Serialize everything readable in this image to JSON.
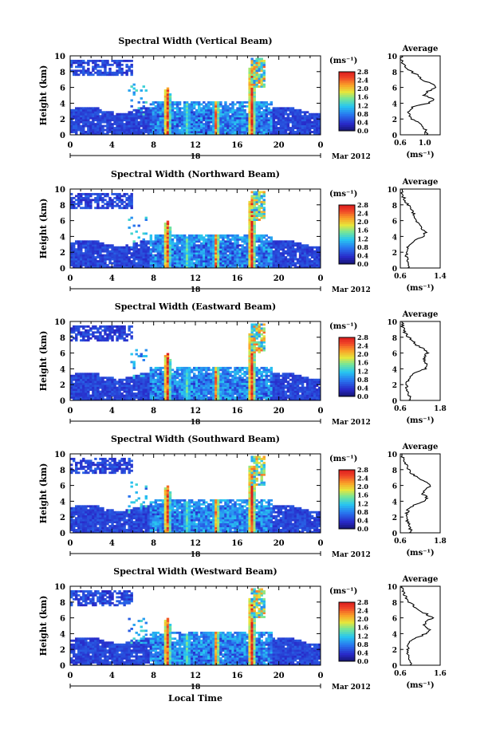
{
  "figure": {
    "xlabel": "Local Time"
  },
  "chart_data": [
    {
      "type": "heatmap",
      "title": "Spectral Width (Vertical Beam)",
      "ylabel": "Height (km)",
      "ylim": [
        0,
        10
      ],
      "yticks": [
        "0",
        "2",
        "4",
        "6",
        "8",
        "10"
      ],
      "xlim": [
        0,
        24
      ],
      "xticks": [
        "0",
        "4",
        "8",
        "12",
        "16",
        "20",
        "0"
      ],
      "date_tick": "18",
      "date_label": "Mar 2012",
      "colorbar": {
        "unit_label": "(ms⁻¹)",
        "ticks": [
          "0.0",
          "0.4",
          "0.8",
          "1.2",
          "1.6",
          "2.0",
          "2.4",
          "2.8"
        ],
        "range": [
          0,
          2.8
        ]
      },
      "average_profile": {
        "title": "Average",
        "xlabel": "(ms⁻¹)",
        "xlim": [
          0.6,
          1.25
        ],
        "xticks": [
          "0.6",
          "1.0"
        ],
        "height": [
          0,
          0.5,
          1,
          1.5,
          2,
          2.5,
          3,
          3.5,
          4,
          4.5,
          5,
          5.5,
          6,
          6.5,
          7,
          7.5,
          8,
          8.5,
          9,
          9.5,
          10
        ],
        "width": [
          1.05,
          1.02,
          0.97,
          0.93,
          0.8,
          0.75,
          0.74,
          0.8,
          1.05,
          1.15,
          0.98,
          1.05,
          1.2,
          1.1,
          0.95,
          0.9,
          0.78,
          0.7,
          0.65,
          0.62,
          0.62
        ]
      }
    },
    {
      "type": "heatmap",
      "title": "Spectral Width (Northward Beam)",
      "ylabel": "Height (km)",
      "ylim": [
        0,
        10
      ],
      "yticks": [
        "0",
        "2",
        "4",
        "6",
        "8",
        "10"
      ],
      "xlim": [
        0,
        24
      ],
      "xticks": [
        "0",
        "4",
        "8",
        "12",
        "16",
        "20",
        "0"
      ],
      "date_tick": "18",
      "date_label": "Mar 2012",
      "colorbar": {
        "unit_label": "(ms⁻¹)",
        "ticks": [
          "0.0",
          "0.4",
          "0.8",
          "1.2",
          "1.6",
          "2.0",
          "2.4",
          "2.8"
        ],
        "range": [
          0,
          2.8
        ]
      },
      "average_profile": {
        "title": "Average",
        "xlabel": "(ms⁻¹)",
        "xlim": [
          0.6,
          1.4
        ],
        "xticks": [
          "0.6",
          "1.4"
        ],
        "height": [
          0,
          0.5,
          1,
          1.5,
          2,
          2.5,
          3,
          3.5,
          4,
          4.5,
          5,
          5.5,
          6,
          6.5,
          7,
          7.5,
          8,
          8.5,
          9,
          9.5,
          10
        ],
        "width": [
          0.78,
          0.76,
          0.74,
          0.72,
          0.72,
          0.74,
          0.8,
          0.9,
          1.05,
          1.1,
          1.02,
          0.98,
          0.92,
          0.9,
          0.85,
          0.82,
          0.75,
          0.7,
          0.66,
          0.64,
          0.63
        ]
      }
    },
    {
      "type": "heatmap",
      "title": "Spectral Width (Eastward Beam)",
      "ylabel": "Height (km)",
      "ylim": [
        0,
        10
      ],
      "yticks": [
        "0",
        "2",
        "4",
        "6",
        "8",
        "10"
      ],
      "xlim": [
        0,
        24
      ],
      "xticks": [
        "0",
        "4",
        "8",
        "12",
        "16",
        "20",
        "0"
      ],
      "date_tick": "18",
      "date_label": "Mar 2012",
      "colorbar": {
        "unit_label": "(ms⁻¹)",
        "ticks": [
          "0.0",
          "0.4",
          "0.8",
          "1.2",
          "1.6",
          "2.0",
          "2.4",
          "2.8"
        ],
        "range": [
          0,
          2.8
        ]
      },
      "average_profile": {
        "title": "Average",
        "xlabel": "(ms⁻¹)",
        "xlim": [
          0.6,
          1.8
        ],
        "xticks": [
          "0.6",
          "1.8"
        ],
        "height": [
          0,
          0.5,
          1,
          1.5,
          2,
          2.5,
          3,
          3.5,
          4,
          4.5,
          5,
          5.5,
          6,
          6.5,
          7,
          7.5,
          8,
          8.5,
          9,
          9.5,
          10
        ],
        "width": [
          0.9,
          0.88,
          0.85,
          0.8,
          0.8,
          0.82,
          0.9,
          1.05,
          1.35,
          1.4,
          1.3,
          1.35,
          1.4,
          1.3,
          1.1,
          1.0,
          0.85,
          0.75,
          0.7,
          0.66,
          0.65
        ]
      }
    },
    {
      "type": "heatmap",
      "title": "Spectral Width (Southward Beam)",
      "ylabel": "Height (km)",
      "ylim": [
        0,
        10
      ],
      "yticks": [
        "0",
        "2",
        "4",
        "6",
        "8",
        "10"
      ],
      "xlim": [
        0,
        24
      ],
      "xticks": [
        "0",
        "4",
        "8",
        "12",
        "16",
        "20",
        "0"
      ],
      "date_tick": "18",
      "date_label": "Mar 2012",
      "colorbar": {
        "unit_label": "(ms⁻¹)",
        "ticks": [
          "0.0",
          "0.4",
          "0.8",
          "1.2",
          "1.6",
          "2.0",
          "2.4",
          "2.8"
        ],
        "range": [
          0,
          2.8
        ]
      },
      "average_profile": {
        "title": "Average",
        "xlabel": "(ms⁻¹)",
        "xlim": [
          0.6,
          1.8
        ],
        "xticks": [
          "0.6",
          "1.8"
        ],
        "height": [
          0,
          0.5,
          1,
          1.5,
          2,
          2.5,
          3,
          3.5,
          4,
          4.5,
          5,
          5.5,
          6,
          6.5,
          7,
          7.5,
          8,
          8.5,
          9,
          9.5,
          10
        ],
        "width": [
          0.92,
          0.9,
          0.86,
          0.8,
          0.78,
          0.8,
          0.85,
          1.0,
          1.3,
          1.4,
          1.25,
          1.35,
          1.5,
          1.35,
          1.1,
          0.95,
          0.85,
          0.78,
          0.72,
          0.68,
          0.66
        ]
      }
    },
    {
      "type": "heatmap",
      "title": "Spectral Width (Westward Beam)",
      "ylabel": "Height (km)",
      "ylim": [
        0,
        10
      ],
      "yticks": [
        "0",
        "2",
        "4",
        "6",
        "8",
        "10"
      ],
      "xlim": [
        0,
        24
      ],
      "xticks": [
        "0",
        "4",
        "8",
        "12",
        "16",
        "20",
        "0"
      ],
      "date_tick": "18",
      "date_label": "Mar 2012",
      "colorbar": {
        "unit_label": "(ms⁻¹)",
        "ticks": [
          "0.0",
          "0.4",
          "0.8",
          "1.2",
          "1.6",
          "2.0",
          "2.4",
          "2.8"
        ],
        "range": [
          0,
          2.8
        ]
      },
      "average_profile": {
        "title": "Average",
        "xlabel": "(ms⁻¹)",
        "xlim": [
          0.6,
          1.6
        ],
        "xticks": [
          "0.6",
          "1.6"
        ],
        "height": [
          0,
          0.5,
          1,
          1.5,
          2,
          2.5,
          3,
          3.5,
          4,
          4.5,
          5,
          5.5,
          6,
          6.5,
          7,
          7.5,
          8,
          8.5,
          9,
          9.5,
          10
        ],
        "width": [
          0.88,
          0.86,
          0.82,
          0.78,
          0.78,
          0.8,
          0.86,
          1.0,
          1.25,
          1.35,
          1.2,
          1.25,
          1.4,
          1.25,
          1.05,
          0.95,
          0.82,
          0.75,
          0.7,
          0.66,
          0.65
        ]
      }
    }
  ]
}
